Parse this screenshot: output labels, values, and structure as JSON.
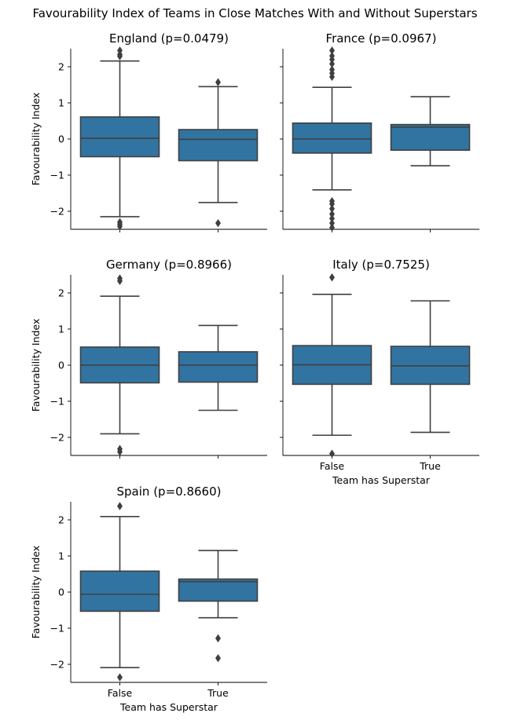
{
  "chart_data": {
    "type": "box",
    "title": "Favourability Index of Teams in Close Matches With and Without Superstars",
    "xlabel": "Team has Superstar",
    "ylabel": "Favourability Index",
    "categories": [
      "False",
      "True"
    ],
    "ylim": [
      -2.5,
      2.5
    ],
    "yticks": [
      "−2",
      "−1",
      "0",
      "1",
      "2"
    ],
    "yticks_values": [
      -2,
      -1,
      0,
      1,
      2
    ],
    "colors": {
      "box": "#3274a1",
      "line": "#3f3f3f"
    },
    "panels": [
      {
        "title": "England (p=0.0479)",
        "boxes": [
          {
            "category": "False",
            "q1": -0.49,
            "median": 0.02,
            "q3": 0.61,
            "whisker_low": -2.15,
            "whisker_high": 2.16,
            "outliers": [
              2.45,
              2.34,
              2.29,
              -2.3,
              -2.36,
              -2.42
            ]
          },
          {
            "category": "True",
            "q1": -0.6,
            "median": -0.01,
            "q3": 0.26,
            "whisker_low": -1.76,
            "whisker_high": 1.45,
            "outliers": [
              1.57,
              -2.33
            ]
          }
        ]
      },
      {
        "title": "France (p=0.0967)",
        "boxes": [
          {
            "category": "False",
            "q1": -0.39,
            "median": 0.0,
            "q3": 0.44,
            "whisker_low": -1.41,
            "whisker_high": 1.43,
            "outliers": [
              2.45,
              2.3,
              2.2,
              2.08,
              1.92,
              1.82,
              1.72,
              -1.72,
              -1.8,
              -1.93,
              -2.08,
              -2.2,
              -2.33,
              -2.45
            ]
          },
          {
            "category": "True",
            "q1": -0.31,
            "median": 0.33,
            "q3": 0.4,
            "whisker_low": -0.74,
            "whisker_high": 1.17,
            "outliers": []
          }
        ]
      },
      {
        "title": "Germany (p=0.8966)",
        "boxes": [
          {
            "category": "False",
            "q1": -0.49,
            "median": 0.0,
            "q3": 0.5,
            "whisker_low": -1.9,
            "whisker_high": 1.91,
            "outliers": [
              2.4,
              2.33,
              -2.32,
              -2.4
            ]
          },
          {
            "category": "True",
            "q1": -0.47,
            "median": 0.0,
            "q3": 0.37,
            "whisker_low": -1.25,
            "whisker_high": 1.1,
            "outliers": []
          }
        ]
      },
      {
        "title": "Italy (p=0.7525)",
        "boxes": [
          {
            "category": "False",
            "q1": -0.53,
            "median": 0.01,
            "q3": 0.54,
            "whisker_low": -1.94,
            "whisker_high": 1.96,
            "outliers": [
              2.43,
              -2.45
            ]
          },
          {
            "category": "True",
            "q1": -0.53,
            "median": -0.02,
            "q3": 0.52,
            "whisker_low": -1.86,
            "whisker_high": 1.78,
            "outliers": []
          }
        ]
      },
      {
        "title": "Spain (p=0.8660)",
        "boxes": [
          {
            "category": "False",
            "q1": -0.53,
            "median": -0.06,
            "q3": 0.58,
            "whisker_low": -2.09,
            "whisker_high": 2.09,
            "outliers": [
              2.38,
              -2.36
            ]
          },
          {
            "category": "True",
            "q1": -0.25,
            "median": 0.29,
            "q3": 0.36,
            "whisker_low": -0.71,
            "whisker_high": 1.15,
            "outliers": [
              -1.28,
              -1.83
            ]
          }
        ]
      }
    ]
  }
}
